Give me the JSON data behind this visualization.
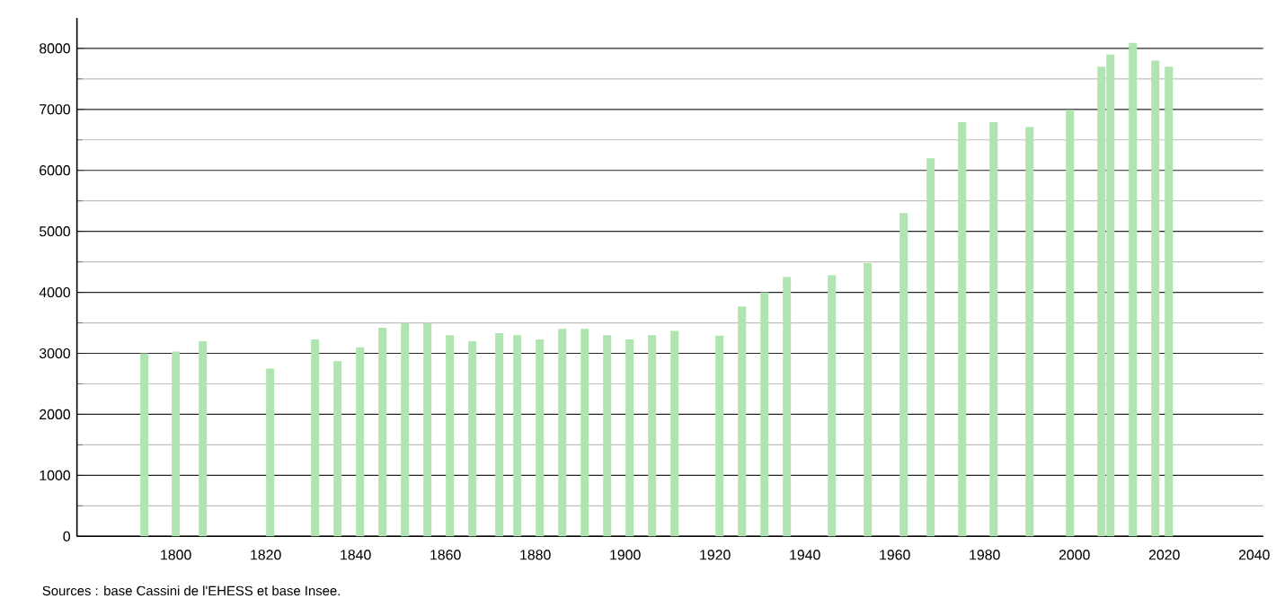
{
  "chart_data": {
    "type": "bar",
    "x": [
      1793,
      1800,
      1806,
      1821,
      1831,
      1836,
      1841,
      1846,
      1851,
      1856,
      1861,
      1866,
      1872,
      1876,
      1881,
      1886,
      1891,
      1896,
      1901,
      1906,
      1911,
      1921,
      1926,
      1931,
      1936,
      1946,
      1954,
      1962,
      1968,
      1975,
      1982,
      1990,
      1999,
      2006,
      2008,
      2013,
      2018,
      2021
    ],
    "values": [
      3000,
      3030,
      3200,
      2750,
      3230,
      2870,
      3100,
      3420,
      3500,
      3500,
      3300,
      3200,
      3330,
      3300,
      3230,
      3400,
      3400,
      3300,
      3230,
      3300,
      3370,
      3290,
      3770,
      4000,
      4250,
      4280,
      4480,
      5300,
      6200,
      6790,
      6790,
      6710,
      6990,
      7700,
      7900,
      8090,
      7800,
      7700
    ],
    "color": "#b0e4b0",
    "xlim": [
      1778,
      2042
    ],
    "xticks": [
      1800,
      1820,
      1840,
      1860,
      1880,
      1900,
      1920,
      1940,
      1960,
      1980,
      2000,
      2020,
      2040
    ],
    "ylim": [
      0,
      8500
    ],
    "yticks": [
      0,
      1000,
      2000,
      3000,
      4000,
      5000,
      6000,
      7000,
      8000
    ],
    "grid": "y",
    "annotations": [
      "Sources : base Cassini de l'EHESS et base Insee."
    ]
  }
}
